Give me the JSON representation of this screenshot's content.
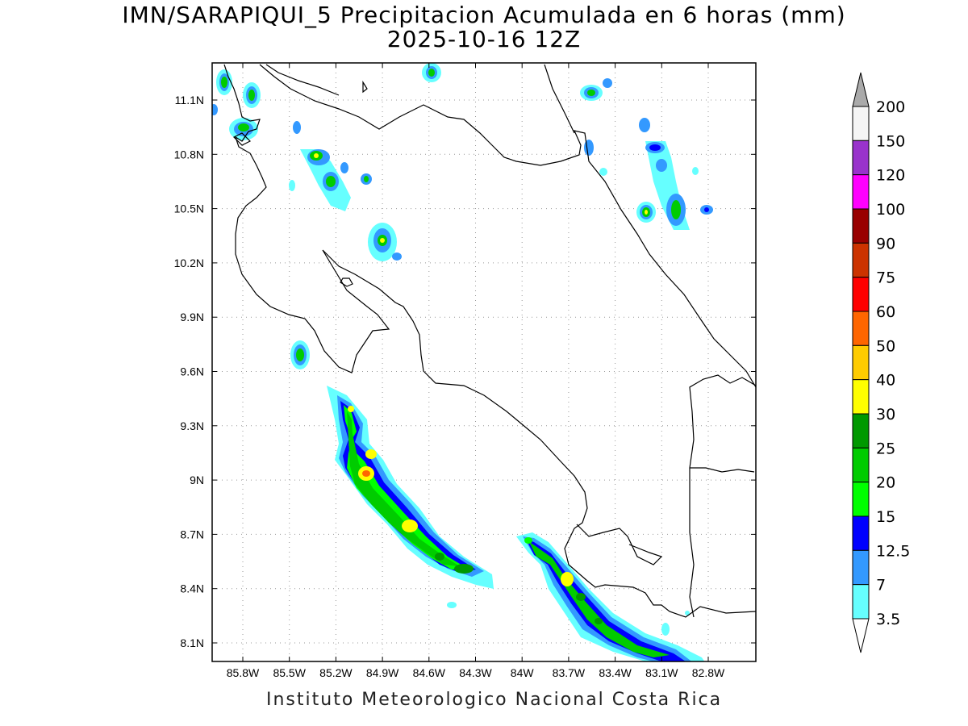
{
  "title": {
    "line1": "IMN/SARAPIQUI_5 Precipitacion Acumulada en 6 horas (mm)",
    "line2": "2025-10-16 12Z"
  },
  "footer": "Instituto Meteorologico Nacional Costa Rica",
  "map": {
    "lon_range": [
      -86.07,
      -83.07
    ],
    "lat_range": [
      8.0,
      11.3
    ],
    "lon_ticks": [
      "85.8W",
      "85.5W",
      "85.2W",
      "84.9W",
      "84.6W",
      "84.3W",
      "84W",
      "83.7W",
      "83.4W",
      "83.1W",
      "82.8W"
    ],
    "lat_ticks": [
      "11.1N",
      "10.8N",
      "10.5N",
      "10.2N",
      "9.9N",
      "9.6N",
      "9.3N",
      "9N",
      "8.7N",
      "8.4N",
      "8.1N"
    ],
    "grid": "dotted"
  },
  "colorbar": {
    "levels": [
      "200",
      "150",
      "120",
      "100",
      "90",
      "75",
      "60",
      "50",
      "40",
      "30",
      "25",
      "20",
      "15",
      "12.5",
      "7",
      "3.5"
    ],
    "colors": [
      "#f5f5f5",
      "#9933cc",
      "#ff00ff",
      "#990000",
      "#cc3300",
      "#ff0000",
      "#ff6600",
      "#ffcc00",
      "#ffff00",
      "#009900",
      "#00cc00",
      "#00ff00",
      "#0000ff",
      "#3399ff",
      "#66ffff"
    ],
    "top_arrow_color": "#aaaaaa",
    "bottom_arrow_color": "#ffffff"
  }
}
